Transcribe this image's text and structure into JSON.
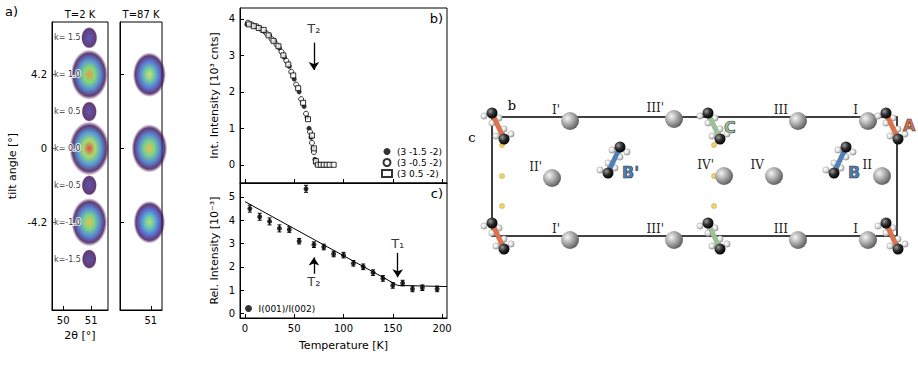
{
  "chart_data": [
    {
      "type": "scatter",
      "panel_label": "a)",
      "title": "T=2 K",
      "xlabel": "2θ [°]",
      "ylabel": "tilt angle [°]",
      "xlim": [
        49.6,
        51.6
      ],
      "xticks": [
        50,
        51
      ],
      "ylim": [
        -9.2,
        7.2
      ],
      "yticks": [
        -4.2,
        0,
        4.2
      ],
      "grid": false,
      "peaks": {
        "x": [
          50.93,
          50.93,
          50.93,
          50.93,
          50.93,
          50.93,
          50.93
        ],
        "y": [
          6.3,
          4.2,
          2.1,
          0,
          -2.1,
          -4.2,
          -6.3
        ],
        "intensity": [
          0.15,
          0.9,
          0.12,
          1.0,
          0.12,
          0.85,
          0.1
        ]
      },
      "annotations": [
        {
          "text": "k= 1.5",
          "y": 6.3
        },
        {
          "text": "k= 1.0",
          "y": 4.2
        },
        {
          "text": "k= 0.5",
          "y": 2.1
        },
        {
          "text": "k= 0.0",
          "y": 0
        },
        {
          "text": "k=-0.5",
          "y": -2.1
        },
        {
          "text": "k=-1.0",
          "y": -4.2
        },
        {
          "text": "k=-1.5",
          "y": -6.3
        }
      ]
    },
    {
      "type": "scatter",
      "title": "T=87 K",
      "xlim": [
        49.9,
        51.4
      ],
      "xticks": [
        51
      ],
      "ylim": [
        -9.2,
        7.2
      ],
      "yticks": [
        -4.2,
        0,
        4.2
      ],
      "grid": false,
      "tick_labels": "x",
      "peaks": {
        "x": [
          50.95,
          50.95,
          50.95
        ],
        "y": [
          4.2,
          0,
          -4.2
        ],
        "intensity": [
          0.75,
          0.85,
          0.7
        ]
      }
    },
    {
      "type": "scatter",
      "panel_label": "b)",
      "ylabel": "Int. Intensity [10³ cnts]",
      "xlim": [
        -5,
        205
      ],
      "xticks": [
        0,
        50,
        100,
        150,
        200
      ],
      "ylim": [
        -0.5,
        4.3
      ],
      "yticks": [
        0,
        1,
        2,
        3,
        4
      ],
      "grid": false,
      "tick_labels": "y",
      "legend": "lower right",
      "series": [
        {
          "name": "(3 -1.5 -2)",
          "marker": "circle",
          "color": "#000000",
          "x": [
            2,
            5,
            10,
            15,
            20,
            25,
            30,
            35,
            40,
            45,
            50,
            55,
            60,
            63,
            65,
            67,
            69,
            71
          ],
          "values": [
            3.85,
            3.85,
            3.8,
            3.75,
            3.65,
            3.55,
            3.4,
            3.2,
            2.95,
            2.7,
            2.35,
            2.0,
            1.6,
            1.3,
            1.0,
            0.75,
            0.45,
            0.15
          ]
        },
        {
          "name": "(3 -0.5 -2)",
          "marker": "circle_open",
          "color": "#000000",
          "x": [
            3,
            7,
            12,
            17,
            22,
            27,
            32,
            37,
            42,
            47,
            52,
            57,
            62,
            66,
            68,
            70,
            72
          ],
          "values": [
            3.9,
            3.85,
            3.8,
            3.7,
            3.6,
            3.45,
            3.3,
            3.1,
            2.85,
            2.55,
            2.2,
            1.8,
            1.4,
            0.9,
            0.6,
            0.35,
            0.05
          ]
        },
        {
          "name": "(3 0.5 -2)",
          "marker": "square_open",
          "color": "#000000",
          "x": [
            4,
            9,
            14,
            19,
            24,
            29,
            34,
            39,
            44,
            49,
            54,
            59,
            64,
            68,
            70,
            72,
            74,
            77,
            80,
            83,
            86,
            90
          ],
          "values": [
            3.85,
            3.8,
            3.75,
            3.7,
            3.55,
            3.4,
            3.25,
            3.0,
            2.75,
            2.45,
            2.1,
            1.7,
            1.25,
            0.8,
            0.45,
            0.1,
            0,
            0,
            0,
            0,
            0,
            0
          ]
        }
      ],
      "annotations": [
        {
          "text": "T₂",
          "x": 70,
          "y": 3.75,
          "arrow": [
            3.35,
            2.6
          ]
        }
      ]
    },
    {
      "type": "scatter",
      "panel_label": "c)",
      "xlabel": "Temperature [K]",
      "ylabel": "Rel. Intensity [10⁻³]",
      "xlim": [
        -5,
        205
      ],
      "xticks": [
        0,
        50,
        100,
        150,
        200
      ],
      "ylim": [
        -0.2,
        5.6
      ],
      "yticks": [
        0,
        1,
        2,
        3,
        4,
        5
      ],
      "grid": false,
      "legend": "lower left",
      "series": [
        {
          "name": "I(001)/I(002)",
          "marker": "circle",
          "color": "#000000",
          "x": [
            5,
            15,
            25,
            35,
            45,
            55,
            62,
            70,
            80,
            90,
            100,
            110,
            120,
            130,
            140,
            150,
            160,
            170,
            180,
            195
          ],
          "values": [
            4.5,
            4.15,
            3.95,
            3.65,
            3.6,
            3.1,
            5.35,
            2.95,
            2.85,
            2.55,
            2.5,
            2.15,
            2.0,
            1.75,
            1.5,
            1.2,
            1.3,
            1.05,
            1.1,
            1.05
          ],
          "errors": [
            0.15,
            0.15,
            0.15,
            0.15,
            0.12,
            0.12,
            0.15,
            0.12,
            0.12,
            0.12,
            0.12,
            0.12,
            0.12,
            0.12,
            0.12,
            0.12,
            0.12,
            0.12,
            0.12,
            0.12
          ]
        }
      ],
      "fit": {
        "x": [
          0,
          155,
          205
        ],
        "values": [
          4.8,
          1.2,
          1.15
        ]
      },
      "annotations": [
        {
          "text": "T₂",
          "x": 70,
          "y": 1.35,
          "arrow": [
            1.7,
            2.4
          ]
        },
        {
          "text": "T₁",
          "x": 155,
          "y": 3.0,
          "arrow": [
            2.6,
            1.55
          ]
        }
      ]
    }
  ],
  "diagram": {
    "axis_labels": [
      "b",
      "c"
    ],
    "sites": [
      "I'",
      "III'",
      "III",
      "I",
      "II'",
      "IV'",
      "IV",
      "II",
      "I'",
      "III'",
      "III",
      "I"
    ],
    "molecules": [
      {
        "label": "A",
        "color": "#d9744f"
      },
      {
        "label": "C",
        "color": "#9cbf96"
      },
      {
        "label": "B'",
        "color": "#4f80b8"
      },
      {
        "label": "B",
        "color": "#4f80b8"
      }
    ]
  }
}
